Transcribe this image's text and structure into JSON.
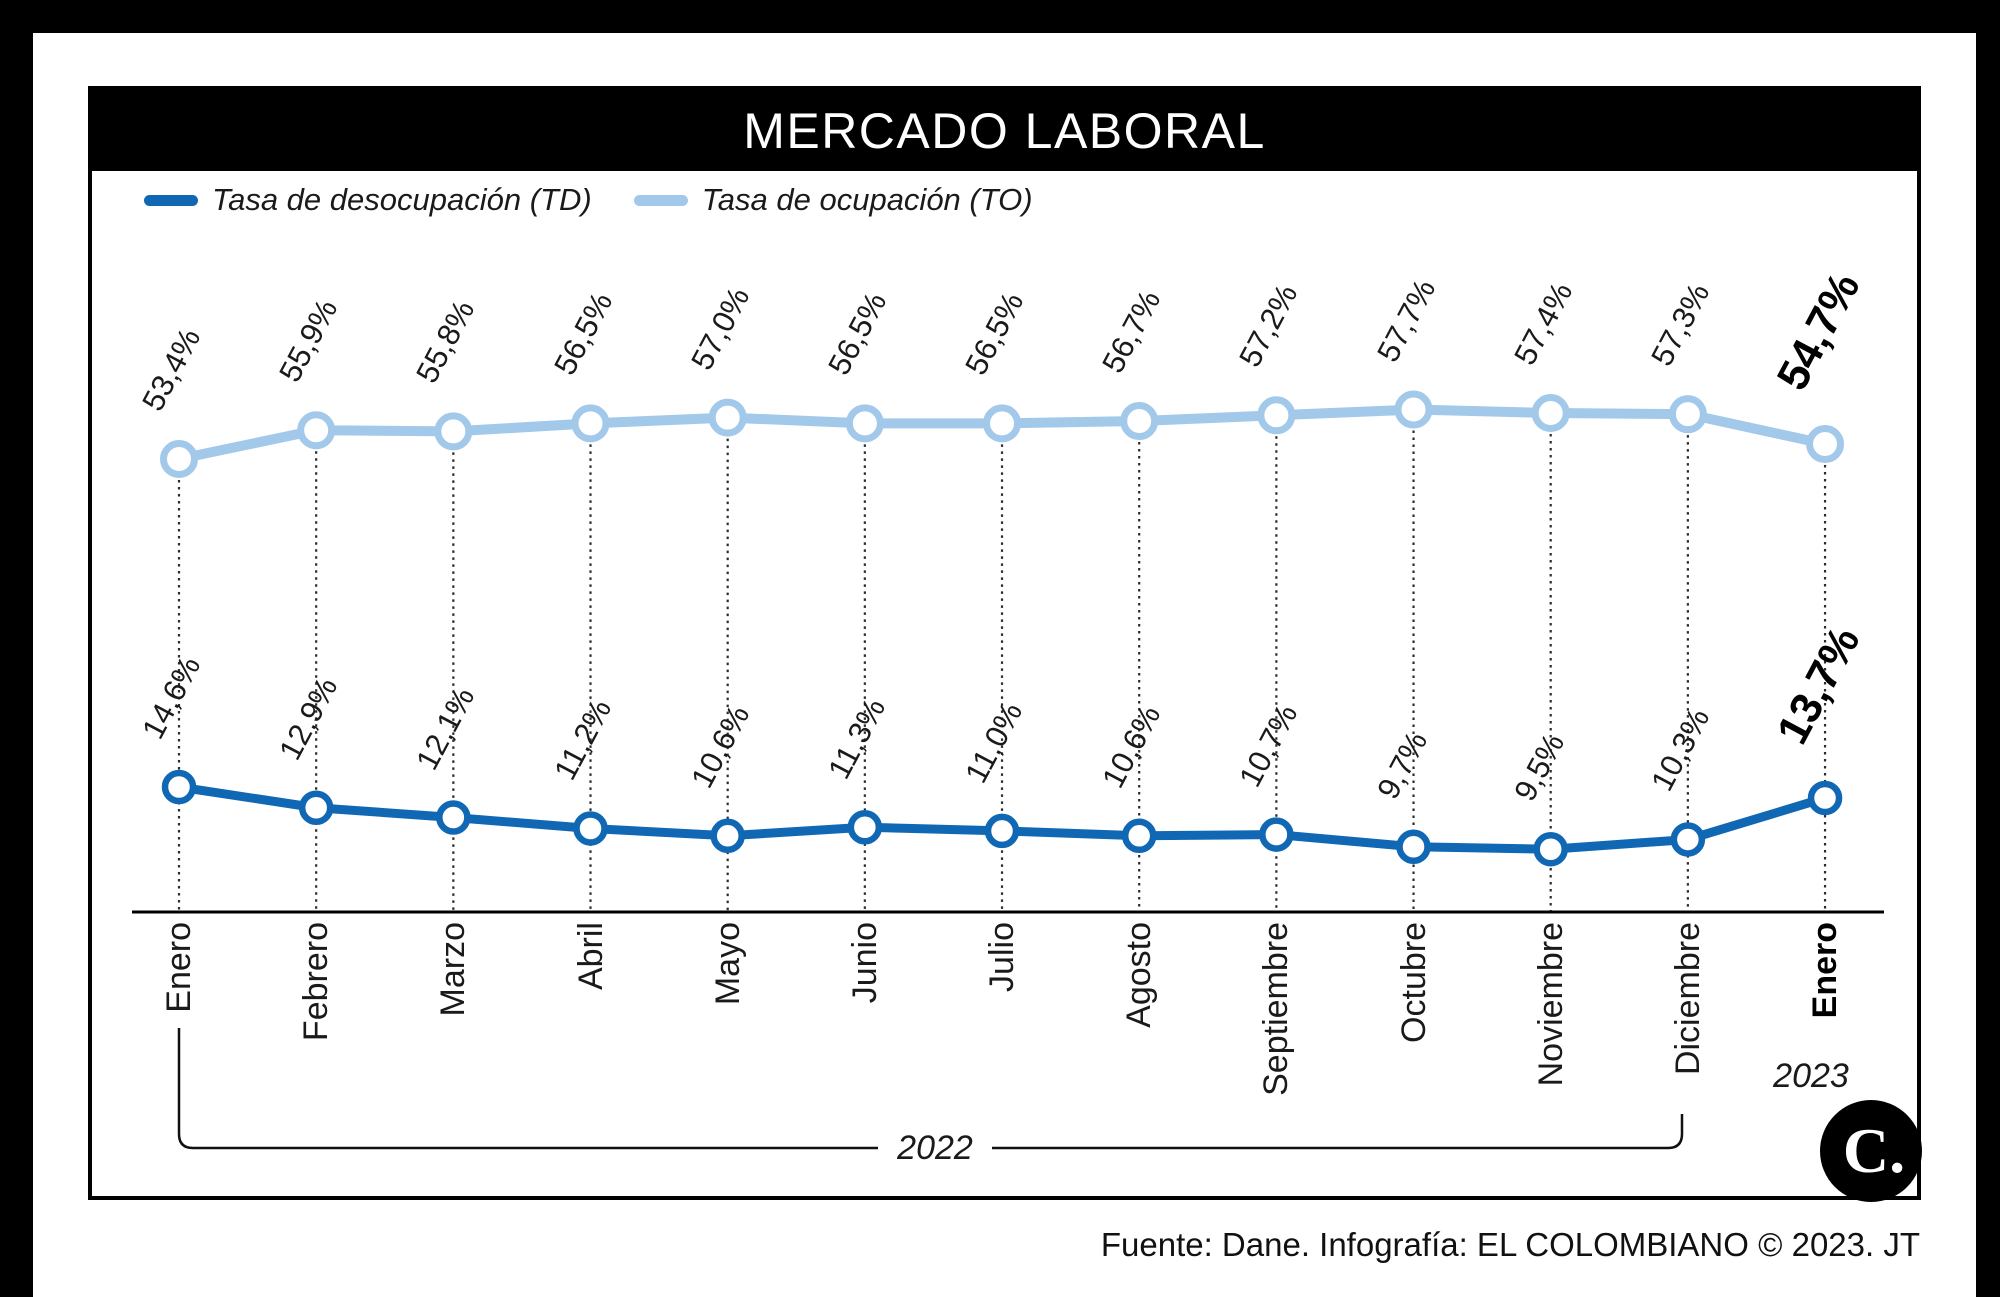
{
  "header": {
    "title": "MERCADO LABORAL"
  },
  "legend": [
    {
      "label": "Tasa de desocupación (TD)",
      "color": "#1068b4"
    },
    {
      "label": "Tasa de ocupación (TO)",
      "color": "#a2c8ea"
    }
  ],
  "chart_data": {
    "type": "line",
    "title": "MERCADO LABORAL",
    "categories": [
      "Enero",
      "Febrero",
      "Marzo",
      "Abril",
      "Mayo",
      "Junio",
      "Julio",
      "Agosto",
      "Septiembre",
      "Octubre",
      "Noviembre",
      "Diciembre",
      "Enero"
    ],
    "series": [
      {
        "name": "Tasa de desocupación (TD)",
        "color": "#1068b4",
        "values": [
          14.6,
          12.9,
          12.1,
          11.2,
          10.6,
          11.3,
          11.0,
          10.6,
          10.7,
          9.7,
          9.5,
          10.3,
          13.7
        ],
        "labels": [
          "14,6%",
          "12,9%",
          "12,1%",
          "11,2%",
          "10,6%",
          "11,3%",
          "11,0%",
          "10,6%",
          "10,7%",
          "9,7%",
          "9,5%",
          "10,3%",
          "13,7%"
        ]
      },
      {
        "name": "Tasa de ocupación (TO)",
        "color": "#a2c8ea",
        "values": [
          53.4,
          55.9,
          55.8,
          56.5,
          57.0,
          56.5,
          56.5,
          56.7,
          57.2,
          57.7,
          57.4,
          57.3,
          54.7
        ],
        "labels": [
          "53,4%",
          "55,9%",
          "55,8%",
          "56,5%",
          "57,0%",
          "56,5%",
          "56,5%",
          "56,7%",
          "57,2%",
          "57,7%",
          "57,4%",
          "57,3%",
          "54,7%"
        ]
      }
    ],
    "year_groups": [
      {
        "label": "2022",
        "from_index": 0,
        "to_index": 11
      },
      {
        "label": "2023",
        "from_index": 12,
        "to_index": 12
      }
    ],
    "highlight_last_point": true,
    "legend_position": "top-left",
    "grid": false,
    "marker": "open-circle",
    "guide_lines": "dotted-vertical"
  },
  "logo": {
    "text": "C."
  },
  "footer": {
    "credit": "Fuente: Dane. Infografía: EL COLOMBIANO © 2023. JT"
  }
}
